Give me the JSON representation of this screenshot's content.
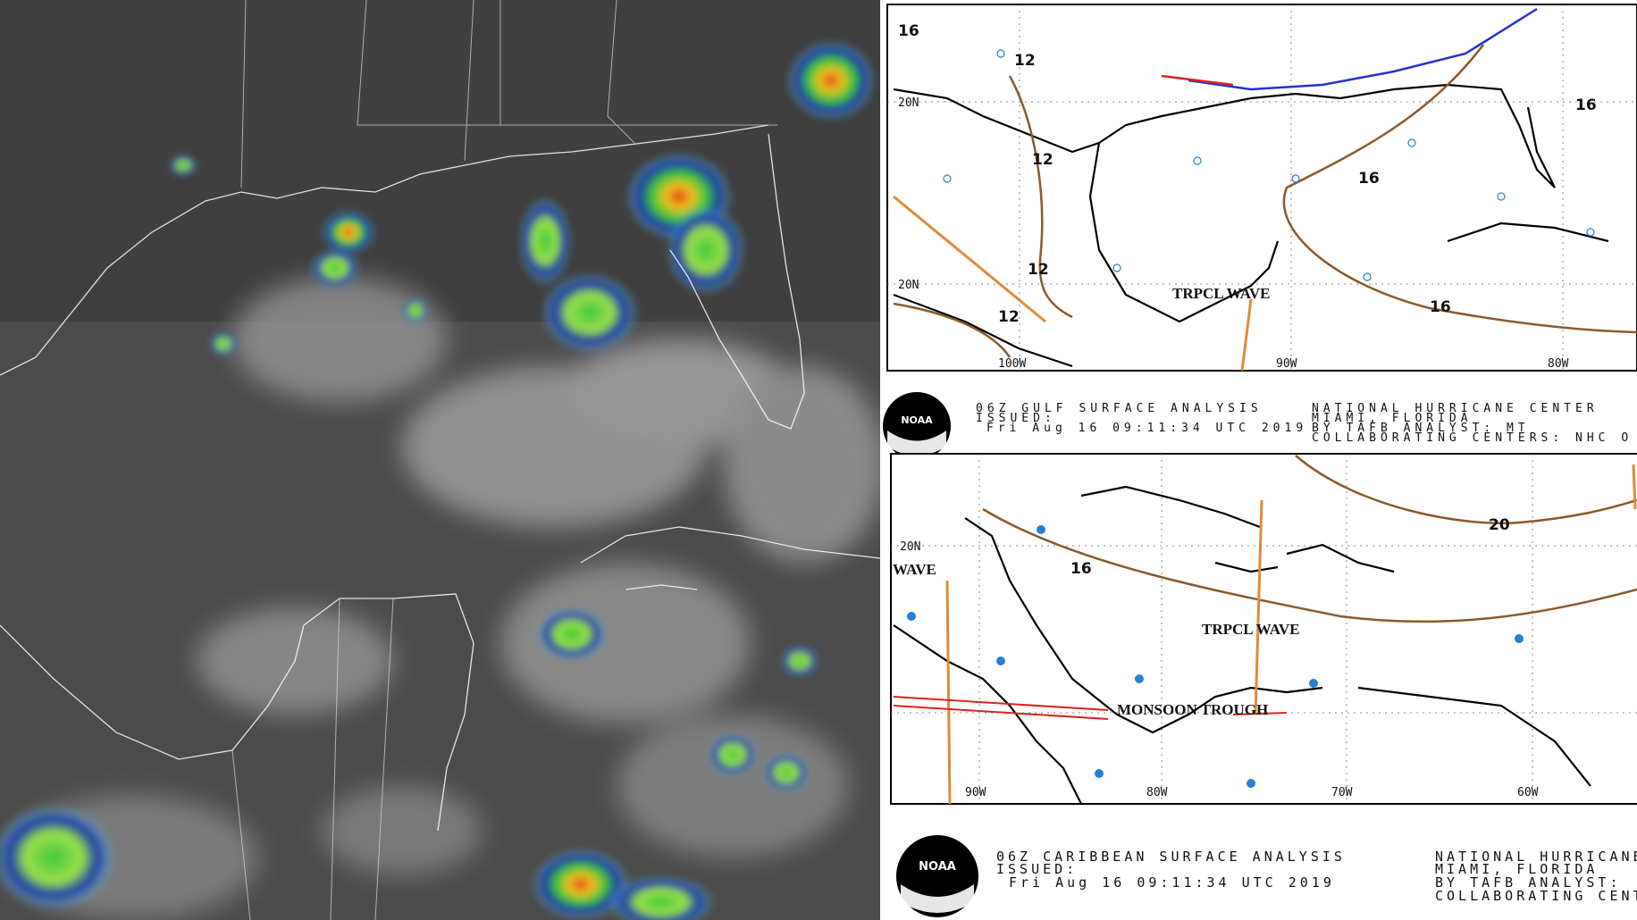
{
  "gulf_map": {
    "isobar_labels": [
      "12",
      "12",
      "12",
      "12",
      "16",
      "16",
      "16",
      "16"
    ],
    "feature_label": "TRPCL WAVE",
    "lat_labels": [
      "20N",
      "20N"
    ],
    "lon_labels": [
      "100W",
      "90W",
      "80W"
    ],
    "caption": {
      "title": "06Z GULF SURFACE ANALYSIS",
      "issued": "ISSUED:",
      "time": "Fri Aug 16 09:11:34 UTC 2019",
      "center": "NATIONAL HURRICANE CENTER",
      "city": "MIAMI, FLORIDA",
      "analyst": "BY TAFB ANALYST: MT",
      "collab": "COLLABORATING CENTERS: NHC O"
    },
    "logo": "NOAA"
  },
  "caribbean_map": {
    "isobar_labels": [
      "16",
      "20"
    ],
    "feature_labels": [
      "TRPCL WAVE",
      "MONSOON TROUGH",
      "WAVE"
    ],
    "lat_labels": [
      "20N"
    ],
    "lon_labels": [
      "90W",
      "80W",
      "70W",
      "60W"
    ],
    "caption": {
      "title": "06Z CARIBBEAN SURFACE ANALYSIS",
      "issued": "ISSUED:",
      "time": "Fri Aug 16 09:11:34 UTC 2019",
      "center": "NATIONAL HURRICANE",
      "city": "MIAMI, FLORIDA",
      "analyst": "BY TAFB ANALYST:",
      "collab": "COLLABORATING CENT"
    },
    "logo": "NOAA"
  }
}
